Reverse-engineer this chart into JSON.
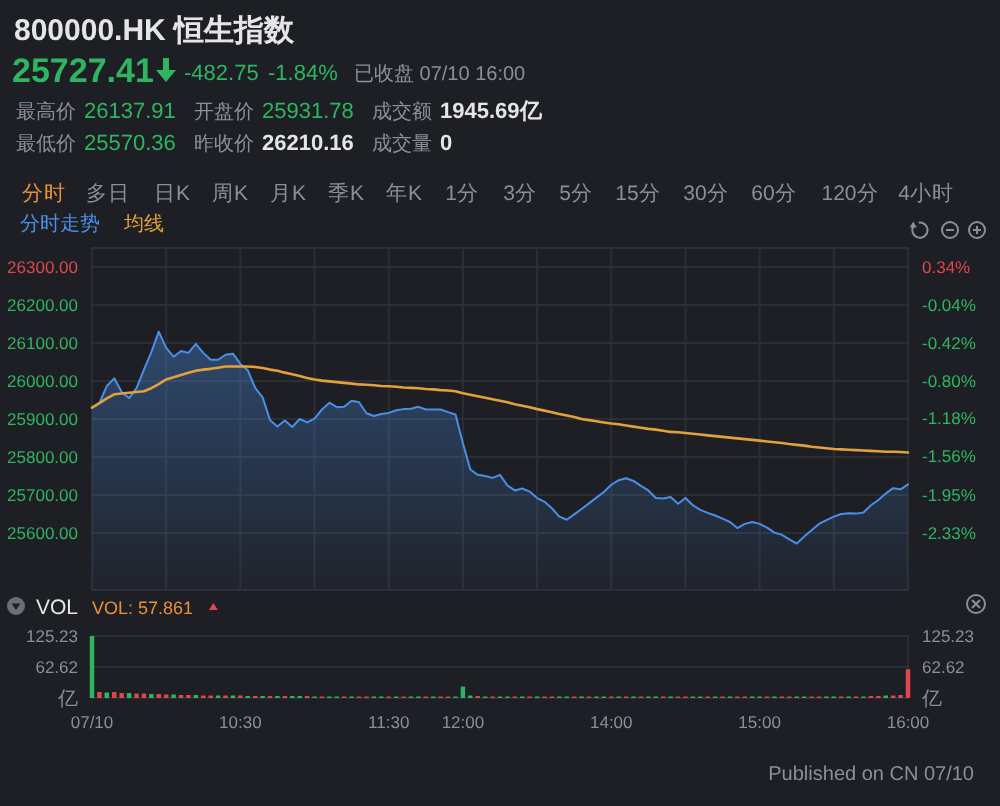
{
  "chart_data": [
    {
      "type": "other",
      "title": "800000.HK 恒生指数",
      "annotations": [
        "25727.41",
        "-482.75",
        "-1.84%",
        "已收盘 07/10 16:00",
        "最高价",
        "26137.91",
        "开盘价",
        "25931.78",
        "成交额",
        "1945.69亿",
        "最低价",
        "25570.36",
        "昨收价",
        "26210.16",
        "成交量",
        "0",
        "分时",
        "多日",
        "日K",
        "周K",
        "月K",
        "季K",
        "年K",
        "1分",
        "3分",
        "5分",
        "15分",
        "30分",
        "60分",
        "120分",
        "4小时"
      ]
    },
    {
      "type": "line",
      "categories": [
        null,
        null,
        null,
        null,
        null,
        null,
        null,
        null,
        null,
        null,
        null,
        null,
        null,
        null,
        null,
        null,
        null,
        null,
        null,
        null,
        null,
        null,
        null,
        null,
        null,
        null,
        null,
        null,
        null,
        null,
        null,
        null,
        null,
        null,
        null,
        null,
        null,
        null,
        null,
        null,
        null,
        null,
        null,
        null,
        null,
        null,
        null,
        null,
        null,
        null,
        null,
        null,
        null,
        null,
        null,
        null,
        null,
        null,
        null,
        null,
        null,
        null,
        null,
        null,
        null,
        null,
        null,
        null,
        null,
        null,
        null,
        null,
        null,
        null,
        null,
        null,
        null,
        null,
        null,
        null,
        null,
        null,
        null,
        null,
        null,
        null,
        null,
        null,
        null,
        null,
        null,
        null,
        null,
        null,
        null,
        null,
        null,
        null,
        null,
        null,
        null,
        null,
        null,
        null,
        null,
        null,
        null,
        null,
        null,
        null,
        null
      ],
      "series": [
        {
          "name": "分时走势",
          "type": "area",
          "color": "#4a8fe7",
          "values": [
            25930,
            25942,
            25987,
            26007,
            25971,
            25955,
            25981,
            26030,
            26076,
            26130,
            26087,
            26064,
            26079,
            26074,
            26098,
            26074,
            26056,
            26056,
            26069,
            26072,
            26045,
            26028,
            25982,
            25957,
            25897,
            25880,
            25896,
            25879,
            25900,
            25891,
            25901,
            25925,
            25943,
            25931,
            25932,
            25948,
            25944,
            25915,
            25908,
            25913,
            25916,
            25923,
            25926,
            25927,
            25932,
            25925,
            25925,
            25925,
            25918,
            25912,
            25836,
            25767,
            25753,
            25750,
            25745,
            25753,
            25725,
            25712,
            25717,
            25709,
            25692,
            25682,
            25665,
            25643,
            25635,
            25649,
            25663,
            25678,
            25693,
            25708,
            25727,
            25739,
            25744,
            25737,
            25724,
            25712,
            25692,
            25691,
            25695,
            25677,
            25692,
            25673,
            25661,
            25653,
            25646,
            25638,
            25629,
            25613,
            25624,
            25629,
            25624,
            25614,
            25601,
            25595,
            25583,
            25572,
            25591,
            25607,
            25624,
            25634,
            25643,
            25650,
            25652,
            25651,
            25654,
            25673,
            25687,
            25704,
            25718,
            25715,
            25728
          ]
        },
        {
          "name": "均线",
          "type": "line",
          "color": "#e3a13c",
          "values": [
            25930,
            25942,
            25954,
            25965,
            25967,
            25969,
            25971,
            25973,
            25981,
            25992,
            26004,
            26010,
            26016,
            26022,
            26027,
            26030,
            26032,
            26035,
            26038,
            26038,
            26038,
            26038,
            26037,
            26034,
            26030,
            26027,
            26022,
            26018,
            26013,
            26008,
            26004,
            26001,
            25999,
            25997,
            25995,
            25993,
            25991,
            25990,
            25989,
            25987,
            25986,
            25985,
            25983,
            25982,
            25981,
            25979,
            25978,
            25976,
            25975,
            25973,
            25968,
            25964,
            25960,
            25956,
            25952,
            25948,
            25944,
            25939,
            25935,
            25931,
            25926,
            25922,
            25918,
            25913,
            25909,
            25905,
            25900,
            25897,
            25894,
            25891,
            25888,
            25886,
            25883,
            25880,
            25877,
            25874,
            25872,
            25869,
            25866,
            25865,
            25863,
            25861,
            25859,
            25857,
            25855,
            25853,
            25851,
            25849,
            25847,
            25845,
            25843,
            25841,
            25839,
            25837,
            25834,
            25832,
            25830,
            25827,
            25825,
            25823,
            25821,
            25820,
            25819,
            25818,
            25817,
            25816,
            25815,
            25814,
            25814,
            25813,
            25812
          ]
        }
      ],
      "ylim": [
        25450,
        26350
      ],
      "yticks": [
        {
          "value": 25600,
          "label": "25600.00"
        },
        {
          "value": 25700,
          "label": "25700.00"
        },
        {
          "value": 25800,
          "label": "25800.00"
        },
        {
          "value": 25900,
          "label": "25900.00"
        },
        {
          "value": 26000,
          "label": "26000.00"
        },
        {
          "value": 26100,
          "label": "26100.00"
        },
        {
          "value": 26200,
          "label": "26200.00"
        },
        {
          "value": 26300,
          "label": "26300.00"
        }
      ],
      "y2lim": [
        -2.9,
        0.53
      ],
      "y2ticks": [
        {
          "value": -2.33,
          "label": "-2.33%"
        },
        {
          "value": -1.95,
          "label": "-1.95%"
        },
        {
          "value": -1.56,
          "label": "-1.56%"
        },
        {
          "value": -1.18,
          "label": "-1.18%"
        },
        {
          "value": -0.8,
          "label": "-0.80%"
        },
        {
          "value": -0.42,
          "label": "-0.42%"
        },
        {
          "value": -0.04,
          "label": "-0.04%"
        },
        {
          "value": 0.34,
          "label": "0.34%"
        }
      ],
      "grid": true,
      "legend": "top left",
      "tick_labels": "y"
    },
    {
      "type": "bar",
      "title": "VOL",
      "categories": [
        "07/10",
        null,
        null,
        null,
        null,
        null,
        null,
        null,
        null,
        null,
        null,
        null,
        null,
        null,
        null,
        null,
        null,
        null,
        null,
        null,
        "10:30",
        null,
        null,
        null,
        null,
        null,
        null,
        null,
        null,
        null,
        null,
        null,
        null,
        null,
        null,
        null,
        null,
        null,
        null,
        null,
        "11:30",
        null,
        null,
        null,
        null,
        null,
        null,
        null,
        null,
        null,
        "12:00",
        null,
        null,
        null,
        null,
        null,
        null,
        null,
        null,
        null,
        null,
        null,
        null,
        null,
        null,
        null,
        null,
        null,
        null,
        null,
        "14:00",
        null,
        null,
        null,
        null,
        null,
        null,
        null,
        null,
        null,
        null,
        null,
        null,
        null,
        null,
        null,
        null,
        null,
        null,
        null,
        "15:00",
        null,
        null,
        null,
        null,
        null,
        null,
        null,
        null,
        null,
        null,
        null,
        null,
        null,
        null,
        null,
        null,
        null,
        null,
        null,
        "16:00"
      ],
      "values": [
        125,
        12,
        11,
        12,
        10,
        10,
        9,
        9,
        8,
        8,
        7,
        7,
        6,
        6,
        6,
        5,
        5,
        5,
        5,
        5,
        5,
        4,
        4,
        4,
        4,
        4,
        4,
        4,
        4,
        4,
        3,
        3,
        3,
        3,
        3,
        3,
        3,
        3,
        3,
        3,
        3,
        3,
        3,
        3,
        3,
        3,
        3,
        3,
        3,
        3,
        23,
        5,
        4,
        3,
        3,
        3,
        3,
        3,
        3,
        3,
        3,
        3,
        3,
        3,
        3,
        3,
        3,
        3,
        3,
        3,
        3,
        3,
        3,
        3,
        3,
        3,
        3,
        3,
        3,
        3,
        3,
        3,
        3,
        3,
        3,
        3,
        3,
        3,
        3,
        3,
        3,
        3,
        3,
        3,
        3,
        3,
        3,
        3,
        3,
        3,
        3,
        3,
        3,
        3,
        3,
        4,
        4,
        5,
        5,
        6,
        58
      ],
      "colors": [
        "#2fb561",
        "#e0474c",
        "#2fb561",
        "#e0474c",
        "#e0474c",
        "#2fb561",
        "#e0474c",
        "#e0474c",
        "#2fb561",
        "#e0474c",
        "#e0474c",
        "#2fb561",
        "#e0474c",
        "#e0474c",
        "#2fb561",
        "#e0474c",
        "#e0474c",
        "#2fb561",
        "#e0474c",
        "#2fb561",
        "#e0474c",
        "#2fb561",
        "#e0474c",
        "#2fb561",
        "#e0474c",
        "#2fb561",
        "#e0474c",
        "#2fb561",
        "#2fb561",
        "#e0474c",
        "#2fb561",
        "#e0474c",
        "#2fb561",
        "#2fb561",
        "#e0474c",
        "#2fb561",
        "#e0474c",
        "#e0474c",
        "#2fb561",
        "#2fb561",
        "#e0474c",
        "#2fb561",
        "#e0474c",
        "#2fb561",
        "#2fb561",
        "#e0474c",
        "#2fb561",
        "#e0474c",
        "#e0474c",
        "#2fb561",
        "#2fb561",
        "#2fb561",
        "#e0474c",
        "#2fb561",
        "#e0474c",
        "#2fb561",
        "#2fb561",
        "#e0474c",
        "#2fb561",
        "#e0474c",
        "#2fb561",
        "#e0474c",
        "#e0474c",
        "#2fb561",
        "#2fb561",
        "#e0474c",
        "#2fb561",
        "#e0474c",
        "#2fb561",
        "#2fb561",
        "#e0474c",
        "#2fb561",
        "#e0474c",
        "#2fb561",
        "#e0474c",
        "#2fb561",
        "#2fb561",
        "#e0474c",
        "#2fb561",
        "#e0474c",
        "#e0474c",
        "#2fb561",
        "#2fb561",
        "#e0474c",
        "#2fb561",
        "#e0474c",
        "#2fb561",
        "#e0474c",
        "#e0474c",
        "#2fb561",
        "#2fb561",
        "#e0474c",
        "#2fb561",
        "#e0474c",
        "#e0474c",
        "#2fb561",
        "#2fb561",
        "#e0474c",
        "#e0474c",
        "#2fb561",
        "#2fb561",
        "#e0474c",
        "#2fb561",
        "#e0474c",
        "#2fb561",
        "#e0474c",
        "#e0474c",
        "#2fb561",
        "#e0474c",
        "#e0474c",
        "#e0474c"
      ],
      "ylim": [
        0,
        125.23
      ],
      "yticks": [
        {
          "value": 0,
          "label": "亿"
        },
        62.62,
        125.23
      ],
      "y2lim": [
        0,
        125.23
      ],
      "y2ticks": [
        {
          "value": 0,
          "label": "亿"
        },
        62.62,
        125.23
      ],
      "grid": "y",
      "annotations": [
        "VOL: 57.861",
        "Published on CN 07/10"
      ]
    }
  ]
}
